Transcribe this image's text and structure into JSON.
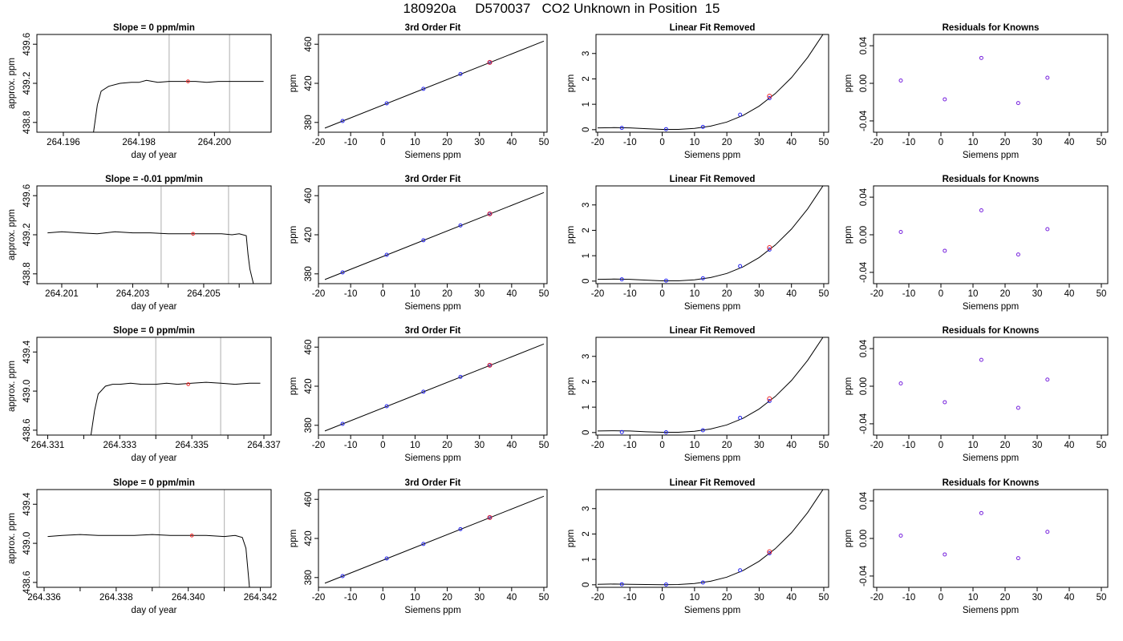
{
  "figure": {
    "title": "180920a     D570037   CO2 Unknown in Position  15"
  },
  "chart_data": [
    {
      "panel": "row1-timeseries",
      "type": "line",
      "title": "Slope =  0  ppm/min",
      "xlabel": "day of year",
      "ylabel": "approx. ppm",
      "xlim": [
        264.1953,
        264.2015
      ],
      "ylim": [
        438.7,
        439.7
      ],
      "xticks": [
        264.196,
        264.198,
        264.2
      ],
      "xticklabels": [
        "264.196",
        "264.198",
        "264.200"
      ],
      "yticks": [
        438.8,
        439.2,
        439.6
      ],
      "yticklabels": [
        "438.8",
        "439.2",
        "439.6"
      ],
      "vlines": [
        264.1988,
        264.2004
      ],
      "series": [
        {
          "x": [
            264.1968,
            264.1969,
            264.197,
            264.1972,
            264.1975,
            264.1978,
            264.198,
            264.1982,
            264.1985,
            264.1988,
            264.1992,
            264.1995,
            264.1998,
            264.2001,
            264.2004,
            264.2008,
            264.2011,
            264.2013
          ],
          "y": [
            438.7,
            438.98,
            439.12,
            439.17,
            439.2,
            439.21,
            439.21,
            439.23,
            439.21,
            439.22,
            439.22,
            439.22,
            439.21,
            439.22,
            439.22,
            439.22,
            439.22,
            439.22
          ]
        }
      ],
      "marker": {
        "x": 264.1993,
        "y": 439.22
      }
    },
    {
      "panel": "row1-fit",
      "type": "scatter",
      "title": "3rd Order Fit",
      "xlabel": "Siemens ppm",
      "ylabel": "ppm",
      "xlim": [
        -20,
        51
      ],
      "ylim": [
        370,
        470
      ],
      "xticks": [
        -20,
        -10,
        0,
        10,
        20,
        30,
        40,
        50
      ],
      "yticks": [
        380,
        420,
        460
      ],
      "curve": {
        "x": [
          -18,
          50
        ],
        "y": [
          374.2,
          463.2
        ]
      },
      "points": {
        "x": [
          -12.5,
          1.2,
          12.6,
          24.1,
          33.2
        ],
        "y": [
          381.5,
          399.5,
          414.4,
          429.5,
          441.4
        ]
      },
      "unknown": {
        "x": 33.2,
        "y": 441.4
      }
    },
    {
      "panel": "row1-linear-removed",
      "type": "scatter",
      "title": "Linear Fit Removed",
      "xlabel": "Siemens ppm",
      "ylabel": "ppm",
      "xlim": [
        -20.5,
        51.5
      ],
      "ylim": [
        -0.1,
        3.75
      ],
      "xticks": [
        -20,
        -10,
        0,
        10,
        20,
        30,
        40,
        50
      ],
      "yticks": [
        0,
        1,
        2,
        3
      ],
      "curve": {
        "x": [
          -20,
          -15,
          -10,
          -5,
          0,
          5,
          10,
          15,
          20,
          25,
          30,
          35,
          40,
          45,
          50
        ],
        "y": [
          0.07,
          0.08,
          0.07,
          0.04,
          0.01,
          0.01,
          0.05,
          0.14,
          0.3,
          0.56,
          0.93,
          1.42,
          2.05,
          2.84,
          3.8
        ]
      },
      "points": {
        "x": [
          -12.5,
          1.2,
          12.6,
          24.1,
          33.2
        ],
        "y": [
          0.07,
          0.02,
          0.11,
          0.59,
          1.24
        ]
      },
      "unknown": {
        "x": 33.2,
        "y": 1.32
      }
    },
    {
      "panel": "row1-residuals",
      "type": "scatter",
      "title": "Residuals for Knowns",
      "xlabel": "Siemens ppm",
      "ylabel": "ppm",
      "xlim": [
        -21,
        52
      ],
      "ylim": [
        -0.052,
        0.052
      ],
      "xticks": [
        -20,
        -10,
        0,
        10,
        20,
        30,
        40,
        50
      ],
      "yticks": [
        -0.04,
        0,
        0.04
      ],
      "yticklabels": [
        "-0.04",
        "0.00",
        "0.04"
      ],
      "points": {
        "x": [
          -12.5,
          1.2,
          12.6,
          24.1,
          33.2
        ],
        "y": [
          0.003,
          -0.017,
          0.027,
          -0.021,
          0.006
        ]
      }
    },
    {
      "panel": "row2-timeseries",
      "type": "line",
      "title": "Slope =  -0.01  ppm/min",
      "xlabel": "day of year",
      "ylabel": "approx. ppm",
      "xlim": [
        264.2003,
        264.2069
      ],
      "ylim": [
        438.7,
        439.7
      ],
      "xticks": [
        264.201,
        264.203,
        264.205
      ],
      "xticklabels": [
        "264.201",
        "264.203",
        "264.205"
      ],
      "minorticks": [
        264.202,
        264.204,
        264.206
      ],
      "yticks": [
        438.8,
        439.2,
        439.6
      ],
      "yticklabels": [
        "438.8",
        "439.2",
        "439.6"
      ],
      "vlines": [
        264.2038,
        264.2057
      ],
      "series": [
        {
          "x": [
            264.2006,
            264.201,
            264.2015,
            264.202,
            264.2025,
            264.203,
            264.2035,
            264.204,
            264.2045,
            264.205,
            264.2055,
            264.2058,
            264.206,
            264.2062,
            264.20625,
            264.2063,
            264.2064
          ],
          "y": [
            439.22,
            439.23,
            439.22,
            439.21,
            439.23,
            439.22,
            439.22,
            439.21,
            439.21,
            439.21,
            439.21,
            439.2,
            439.21,
            439.19,
            439.0,
            438.85,
            438.7
          ]
        }
      ],
      "marker": {
        "x": 264.2047,
        "y": 439.21
      }
    },
    {
      "panel": "row2-fit",
      "type": "scatter",
      "title": "3rd Order Fit",
      "xlabel": "Siemens ppm",
      "ylabel": "ppm",
      "xlim": [
        -20,
        51
      ],
      "ylim": [
        370,
        470
      ],
      "xticks": [
        -20,
        -10,
        0,
        10,
        20,
        30,
        40,
        50
      ],
      "yticks": [
        380,
        420,
        460
      ],
      "curve": {
        "x": [
          -18,
          50
        ],
        "y": [
          374.2,
          463.2
        ]
      },
      "points": {
        "x": [
          -12.5,
          1.2,
          12.6,
          24.1,
          33.2
        ],
        "y": [
          381.5,
          399.5,
          414.4,
          429.5,
          441.4
        ]
      },
      "unknown": {
        "x": 33.2,
        "y": 441.4
      }
    },
    {
      "panel": "row2-linear-removed",
      "type": "scatter",
      "title": "Linear Fit Removed",
      "xlabel": "Siemens ppm",
      "ylabel": "ppm",
      "xlim": [
        -20.5,
        51.5
      ],
      "ylim": [
        -0.1,
        3.75
      ],
      "xticks": [
        -20,
        -10,
        0,
        10,
        20,
        30,
        40,
        50
      ],
      "yticks": [
        0,
        1,
        2,
        3
      ],
      "curve": {
        "x": [
          -20,
          -15,
          -10,
          -5,
          0,
          5,
          10,
          15,
          20,
          25,
          30,
          35,
          40,
          45,
          50
        ],
        "y": [
          0.07,
          0.08,
          0.07,
          0.04,
          0.01,
          0.01,
          0.05,
          0.14,
          0.3,
          0.56,
          0.93,
          1.42,
          2.05,
          2.84,
          3.8
        ]
      },
      "points": {
        "x": [
          -12.5,
          1.2,
          12.6,
          24.1,
          33.2
        ],
        "y": [
          0.07,
          0.02,
          0.11,
          0.59,
          1.24
        ]
      },
      "unknown": {
        "x": 33.2,
        "y": 1.32
      }
    },
    {
      "panel": "row2-residuals",
      "type": "scatter",
      "title": "Residuals for Knowns",
      "xlabel": "Siemens ppm",
      "ylabel": "ppm",
      "xlim": [
        -21,
        52
      ],
      "ylim": [
        -0.052,
        0.052
      ],
      "xticks": [
        -20,
        -10,
        0,
        10,
        20,
        30,
        40,
        50
      ],
      "yticks": [
        -0.04,
        0,
        0.04
      ],
      "yticklabels": [
        "-0.04",
        "0.00",
        "0.04"
      ],
      "points": {
        "x": [
          -12.5,
          1.2,
          12.6,
          24.1,
          33.2
        ],
        "y": [
          0.003,
          -0.017,
          0.026,
          -0.021,
          0.006
        ]
      }
    },
    {
      "panel": "row3-timeseries",
      "type": "line",
      "title": "Slope =  0  ppm/min",
      "xlabel": "day of year",
      "ylabel": "approx. ppm",
      "xlim": [
        264.3307,
        264.3372
      ],
      "ylim": [
        438.55,
        439.55
      ],
      "xticks": [
        264.331,
        264.333,
        264.335,
        264.337
      ],
      "xticklabels": [
        "264.331",
        "264.333",
        "264.335",
        "264.337"
      ],
      "minorticks": [
        264.332,
        264.334,
        264.336
      ],
      "yticks": [
        438.6,
        439.0,
        439.4
      ],
      "yticklabels": [
        "438.6",
        "439.0",
        "439.4"
      ],
      "vlines": [
        264.334,
        264.3358
      ],
      "series": [
        {
          "x": [
            264.3322,
            264.3323,
            264.3324,
            264.3326,
            264.3328,
            264.333,
            264.3333,
            264.3336,
            264.334,
            264.3343,
            264.3346,
            264.335,
            264.3354,
            264.3358,
            264.3362,
            264.3366,
            264.3369
          ],
          "y": [
            438.55,
            438.8,
            438.97,
            439.05,
            439.07,
            439.07,
            439.08,
            439.07,
            439.07,
            439.08,
            439.07,
            439.08,
            439.09,
            439.08,
            439.07,
            439.08,
            439.08
          ]
        }
      ],
      "marker": {
        "x": 264.3349,
        "y": 439.07
      }
    },
    {
      "panel": "row3-fit",
      "type": "scatter",
      "title": "3rd Order Fit",
      "xlabel": "Siemens ppm",
      "ylabel": "ppm",
      "xlim": [
        -20,
        51
      ],
      "ylim": [
        370,
        470
      ],
      "xticks": [
        -20,
        -10,
        0,
        10,
        20,
        30,
        40,
        50
      ],
      "yticks": [
        380,
        420,
        460
      ],
      "curve": {
        "x": [
          -18,
          50
        ],
        "y": [
          374.2,
          463.2
        ]
      },
      "points": {
        "x": [
          -12.5,
          1.2,
          12.6,
          24.1,
          33.2
        ],
        "y": [
          381.5,
          399.5,
          414.4,
          429.5,
          441.4
        ]
      },
      "unknown": {
        "x": 33.2,
        "y": 441.4
      }
    },
    {
      "panel": "row3-linear-removed",
      "type": "scatter",
      "title": "Linear Fit Removed",
      "xlabel": "Siemens ppm",
      "ylabel": "ppm",
      "xlim": [
        -20.5,
        51.5
      ],
      "ylim": [
        -0.1,
        3.75
      ],
      "xticks": [
        -20,
        -10,
        0,
        10,
        20,
        30,
        40,
        50
      ],
      "yticks": [
        0,
        1,
        2,
        3
      ],
      "curve": {
        "x": [
          -20,
          -15,
          -10,
          -5,
          0,
          5,
          10,
          15,
          20,
          25,
          30,
          35,
          40,
          45,
          50
        ],
        "y": [
          0.06,
          0.07,
          0.06,
          0.03,
          0.01,
          0.01,
          0.05,
          0.14,
          0.3,
          0.56,
          0.93,
          1.42,
          2.05,
          2.84,
          3.8
        ]
      },
      "points": {
        "x": [
          -12.5,
          1.2,
          12.6,
          24.1,
          33.2
        ],
        "y": [
          0.02,
          0.01,
          0.09,
          0.58,
          1.24
        ]
      },
      "unknown": {
        "x": 33.2,
        "y": 1.33
      }
    },
    {
      "panel": "row3-residuals",
      "type": "scatter",
      "title": "Residuals for Knowns",
      "xlabel": "Siemens ppm",
      "ylabel": "ppm",
      "xlim": [
        -21,
        52
      ],
      "ylim": [
        -0.052,
        0.052
      ],
      "xticks": [
        -20,
        -10,
        0,
        10,
        20,
        30,
        40,
        50
      ],
      "yticks": [
        -0.04,
        0,
        0.04
      ],
      "yticklabels": [
        "-0.04",
        "0.00",
        "0.04"
      ],
      "points": {
        "x": [
          -12.5,
          1.2,
          12.6,
          24.1,
          33.2
        ],
        "y": [
          0.003,
          -0.017,
          0.028,
          -0.023,
          0.007
        ]
      }
    },
    {
      "panel": "row4-timeseries",
      "type": "line",
      "title": "Slope =  0  ppm/min",
      "xlabel": "day of year",
      "ylabel": "approx. ppm",
      "xlim": [
        264.3358,
        264.3423
      ],
      "ylim": [
        438.55,
        439.55
      ],
      "xticks": [
        264.336,
        264.338,
        264.34,
        264.342
      ],
      "xticklabels": [
        "264.336",
        "264.338",
        "264.340",
        "264.342"
      ],
      "minorticks": [
        264.337,
        264.339,
        264.341
      ],
      "yticks": [
        438.6,
        439.0,
        439.4
      ],
      "yticklabels": [
        "438.6",
        "439.0",
        "439.4"
      ],
      "vlines": [
        264.3392,
        264.341
      ],
      "series": [
        {
          "x": [
            264.3361,
            264.3365,
            264.337,
            264.3375,
            264.338,
            264.3385,
            264.339,
            264.3395,
            264.34,
            264.3405,
            264.341,
            264.3413,
            264.3415,
            264.3416,
            264.34165,
            264.3417
          ],
          "y": [
            439.07,
            439.08,
            439.09,
            439.08,
            439.08,
            439.08,
            439.09,
            439.08,
            439.08,
            439.08,
            439.07,
            439.08,
            439.06,
            438.95,
            438.75,
            438.55
          ]
        }
      ],
      "marker": {
        "x": 264.3401,
        "y": 439.08
      }
    },
    {
      "panel": "row4-fit",
      "type": "scatter",
      "title": "3rd Order Fit",
      "xlabel": "Siemens ppm",
      "ylabel": "ppm",
      "xlim": [
        -20,
        51
      ],
      "ylim": [
        370,
        470
      ],
      "xticks": [
        -20,
        -10,
        0,
        10,
        20,
        30,
        40,
        50
      ],
      "yticks": [
        380,
        420,
        460
      ],
      "curve": {
        "x": [
          -18,
          50
        ],
        "y": [
          374.2,
          463.2
        ]
      },
      "points": {
        "x": [
          -12.5,
          1.2,
          12.6,
          24.1,
          33.2
        ],
        "y": [
          381.5,
          399.5,
          414.4,
          429.5,
          441.4
        ]
      },
      "unknown": {
        "x": 33.2,
        "y": 441.4
      }
    },
    {
      "panel": "row4-linear-removed",
      "type": "scatter",
      "title": "Linear Fit Removed",
      "xlabel": "Siemens ppm",
      "ylabel": "ppm",
      "xlim": [
        -20.5,
        51.5
      ],
      "ylim": [
        -0.1,
        3.75
      ],
      "xticks": [
        -20,
        -10,
        0,
        10,
        20,
        30,
        40,
        50
      ],
      "yticks": [
        0,
        1,
        2,
        3
      ],
      "curve": {
        "x": [
          -20,
          -15,
          -10,
          -5,
          0,
          5,
          10,
          15,
          20,
          25,
          30,
          35,
          40,
          45,
          50
        ],
        "y": [
          0.02,
          0.03,
          0.02,
          0.01,
          0.0,
          0.01,
          0.05,
          0.14,
          0.3,
          0.56,
          0.93,
          1.42,
          2.05,
          2.84,
          3.8
        ]
      },
      "points": {
        "x": [
          -12.5,
          1.2,
          12.6,
          24.1,
          33.2
        ],
        "y": [
          0.02,
          0.01,
          0.09,
          0.57,
          1.24
        ]
      },
      "unknown": {
        "x": 33.2,
        "y": 1.3
      }
    },
    {
      "panel": "row4-residuals",
      "type": "scatter",
      "title": "Residuals for Knowns",
      "xlabel": "Siemens ppm",
      "ylabel": "ppm",
      "xlim": [
        -21,
        52
      ],
      "ylim": [
        -0.052,
        0.052
      ],
      "xticks": [
        -20,
        -10,
        0,
        10,
        20,
        30,
        40,
        50
      ],
      "yticks": [
        -0.04,
        0,
        0.04
      ],
      "yticklabels": [
        "-0.04",
        "0.00",
        "0.04"
      ],
      "points": {
        "x": [
          -12.5,
          1.2,
          12.6,
          24.1,
          33.2
        ],
        "y": [
          0.003,
          -0.017,
          0.027,
          -0.021,
          0.007
        ]
      }
    }
  ],
  "colors": {
    "axis": "#000000",
    "line": "#000000",
    "known_points": "#2222ee",
    "residual_points": "#7722dd",
    "unknown_point": "#ee2222",
    "vline": "#bbbbbb"
  }
}
